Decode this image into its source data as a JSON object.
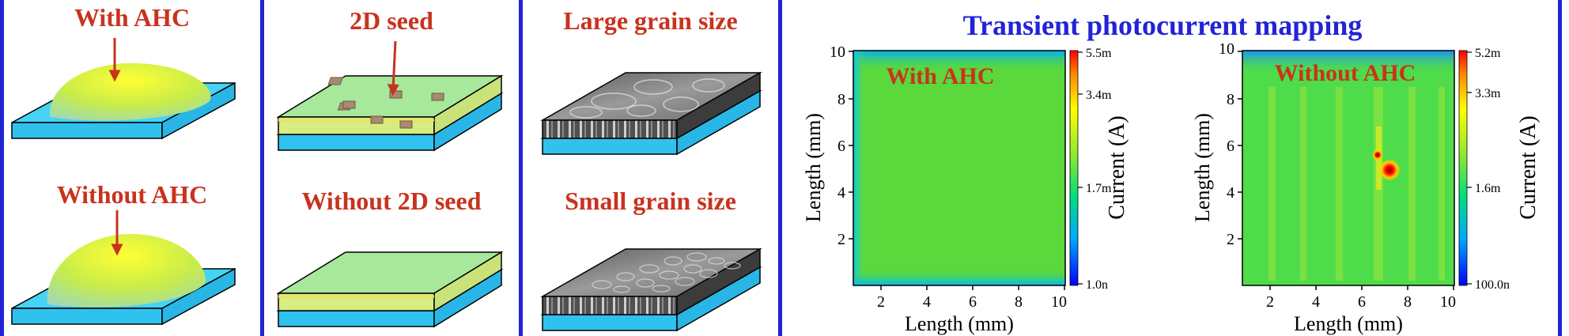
{
  "schematics": {
    "ahc_top": "With AHC",
    "ahc_bottom": "Without AHC",
    "seed_top": "2D seed",
    "seed_bottom": "Without 2D seed",
    "grain_top": "Large grain size",
    "grain_bottom": "Small grain size"
  },
  "mapping": {
    "title": "Transient photocurrent mapping",
    "left": {
      "overlay": "With AHC",
      "xlabel": "Length (mm)",
      "ylabel": "Length (mm)",
      "xticks": [
        "2",
        "4",
        "6",
        "8",
        "10"
      ],
      "yticks": [
        "2",
        "4",
        "6",
        "8",
        "10"
      ],
      "cbar_label": "Current (A)",
      "cbar_ticks": [
        "5.5m",
        "3.4m",
        "1.7m",
        "1.0n"
      ]
    },
    "right": {
      "overlay": "Without AHC",
      "xlabel": "Length (mm)",
      "ylabel": "Length (mm)",
      "xticks": [
        "2",
        "4",
        "6",
        "8",
        "10"
      ],
      "yticks": [
        "2",
        "4",
        "6",
        "8",
        "10"
      ],
      "cbar_label": "Current (A)",
      "cbar_ticks": [
        "5.2m",
        "3.3m",
        "1.6m",
        "100.0n"
      ]
    }
  },
  "colors": {
    "divider": "#2323d6",
    "caption": "#c8331e",
    "title": "#2323d6"
  }
}
